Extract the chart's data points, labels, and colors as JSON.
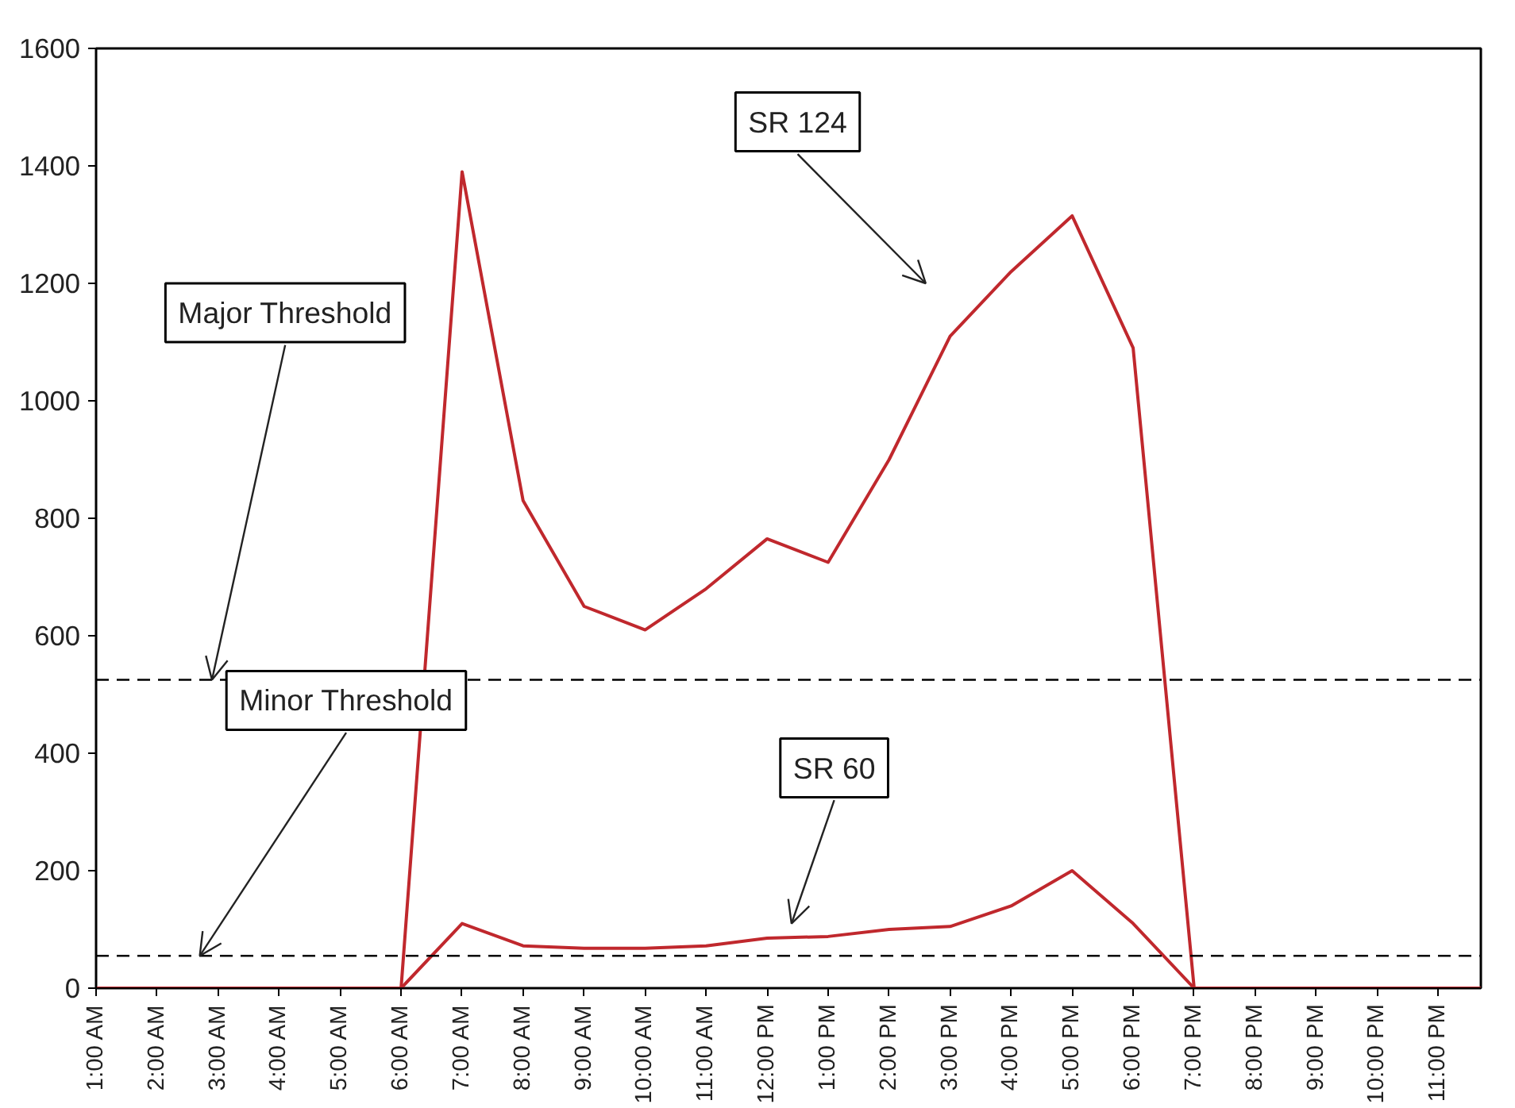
{
  "chart_data": {
    "type": "line",
    "x": [
      1,
      2,
      3,
      4,
      5,
      6,
      7,
      8,
      9,
      10,
      11,
      12,
      13,
      14,
      15,
      16,
      17,
      18,
      19,
      20,
      21,
      22,
      23,
      23.7
    ],
    "series": [
      {
        "name": "SR 124",
        "color": "#c0282d",
        "values": [
          0,
          0,
          0,
          0,
          0,
          0,
          1390,
          830,
          650,
          610,
          680,
          765,
          725,
          900,
          1110,
          1220,
          1315,
          1090,
          0,
          0,
          0,
          0,
          0,
          0
        ]
      },
      {
        "name": "SR 60",
        "color": "#c0282d",
        "values": [
          0,
          0,
          0,
          0,
          0,
          0,
          110,
          72,
          68,
          68,
          72,
          85,
          88,
          100,
          105,
          140,
          200,
          110,
          0,
          0,
          0,
          0,
          0,
          0
        ]
      }
    ],
    "xlim": [
      1,
      23.7
    ],
    "xticks": [
      {
        "value": 1,
        "label": "1:00 AM"
      },
      {
        "value": 2,
        "label": "2:00 AM"
      },
      {
        "value": 3,
        "label": "3:00 AM"
      },
      {
        "value": 4,
        "label": "4:00 AM"
      },
      {
        "value": 5,
        "label": "5:00 AM"
      },
      {
        "value": 6,
        "label": "6:00 AM"
      },
      {
        "value": 7,
        "label": "7:00 AM"
      },
      {
        "value": 8,
        "label": "8:00 AM"
      },
      {
        "value": 9,
        "label": "9:00 AM"
      },
      {
        "value": 10,
        "label": "10:00 AM"
      },
      {
        "value": 11,
        "label": "11:00 AM"
      },
      {
        "value": 12,
        "label": "12:00 PM"
      },
      {
        "value": 13,
        "label": "1:00 PM"
      },
      {
        "value": 14,
        "label": "2:00 PM"
      },
      {
        "value": 15,
        "label": "3:00 PM"
      },
      {
        "value": 16,
        "label": "4:00 PM"
      },
      {
        "value": 17,
        "label": "5:00 PM"
      },
      {
        "value": 18,
        "label": "6:00 PM"
      },
      {
        "value": 19,
        "label": "7:00 PM"
      },
      {
        "value": 20,
        "label": "8:00 PM"
      },
      {
        "value": 21,
        "label": "9:00 PM"
      },
      {
        "value": 22,
        "label": "10:00 PM"
      },
      {
        "value": 23,
        "label": "11:00 PM"
      }
    ],
    "ylim": [
      0,
      1600
    ],
    "yticks": [
      0,
      200,
      400,
      600,
      800,
      1000,
      1200,
      1400,
      1600
    ],
    "ref_lines": [
      {
        "axis": "y",
        "value": 525,
        "color": "#000000",
        "line_style": "dashed"
      },
      {
        "axis": "y",
        "value": 55,
        "color": "#000000",
        "line_style": "dashed"
      }
    ],
    "annotations": [
      {
        "text": "Major Threshold",
        "x": 2.9,
        "y": 525
      },
      {
        "text": "Minor Threshold",
        "x": 2.7,
        "y": 55
      }
    ],
    "grid": false,
    "legend": false,
    "marker": "none",
    "line_style": "solid"
  }
}
